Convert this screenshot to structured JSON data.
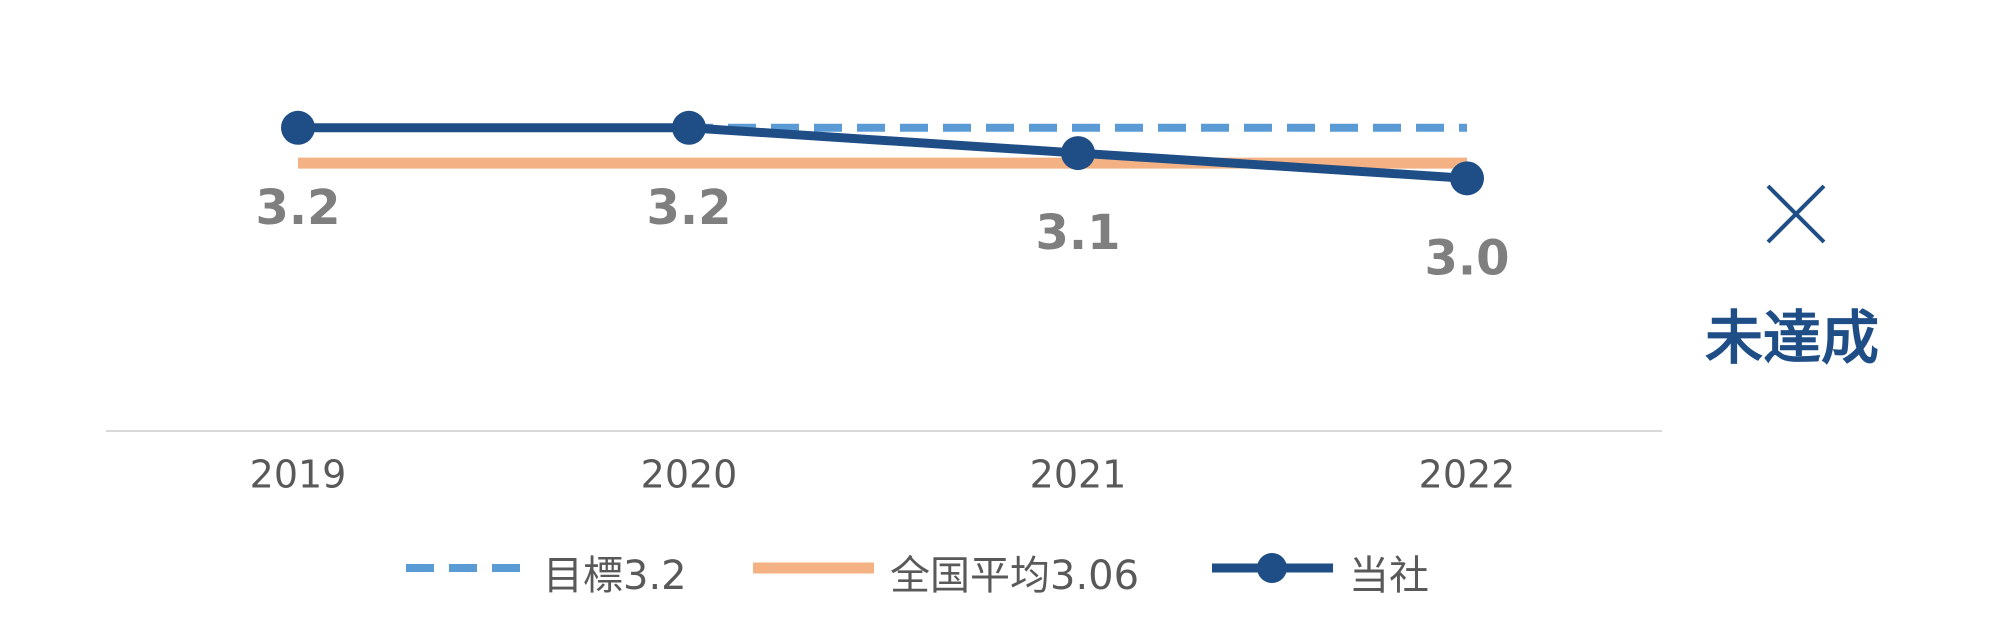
{
  "chart_data": {
    "type": "line",
    "categories": [
      "2019",
      "2020",
      "2021",
      "2022"
    ],
    "ylim": [
      2,
      3.5
    ],
    "series": [
      {
        "name": "目標3.2",
        "color": "#5b9bd5",
        "dashed": true,
        "values": [
          3.2,
          3.2,
          3.2,
          3.2
        ]
      },
      {
        "name": "全国平均3.06",
        "color": "#f4b183",
        "values": [
          3.06,
          3.06,
          3.06,
          3.06
        ]
      },
      {
        "name": "当社",
        "color": "#1f4e87",
        "markers": true,
        "values": [
          3.2,
          3.2,
          3.1,
          3.0
        ],
        "value_labels": [
          "3.2",
          "3.2",
          "3.1",
          "3.0"
        ]
      }
    ],
    "annotation": "未達成",
    "legend": "bottom"
  }
}
